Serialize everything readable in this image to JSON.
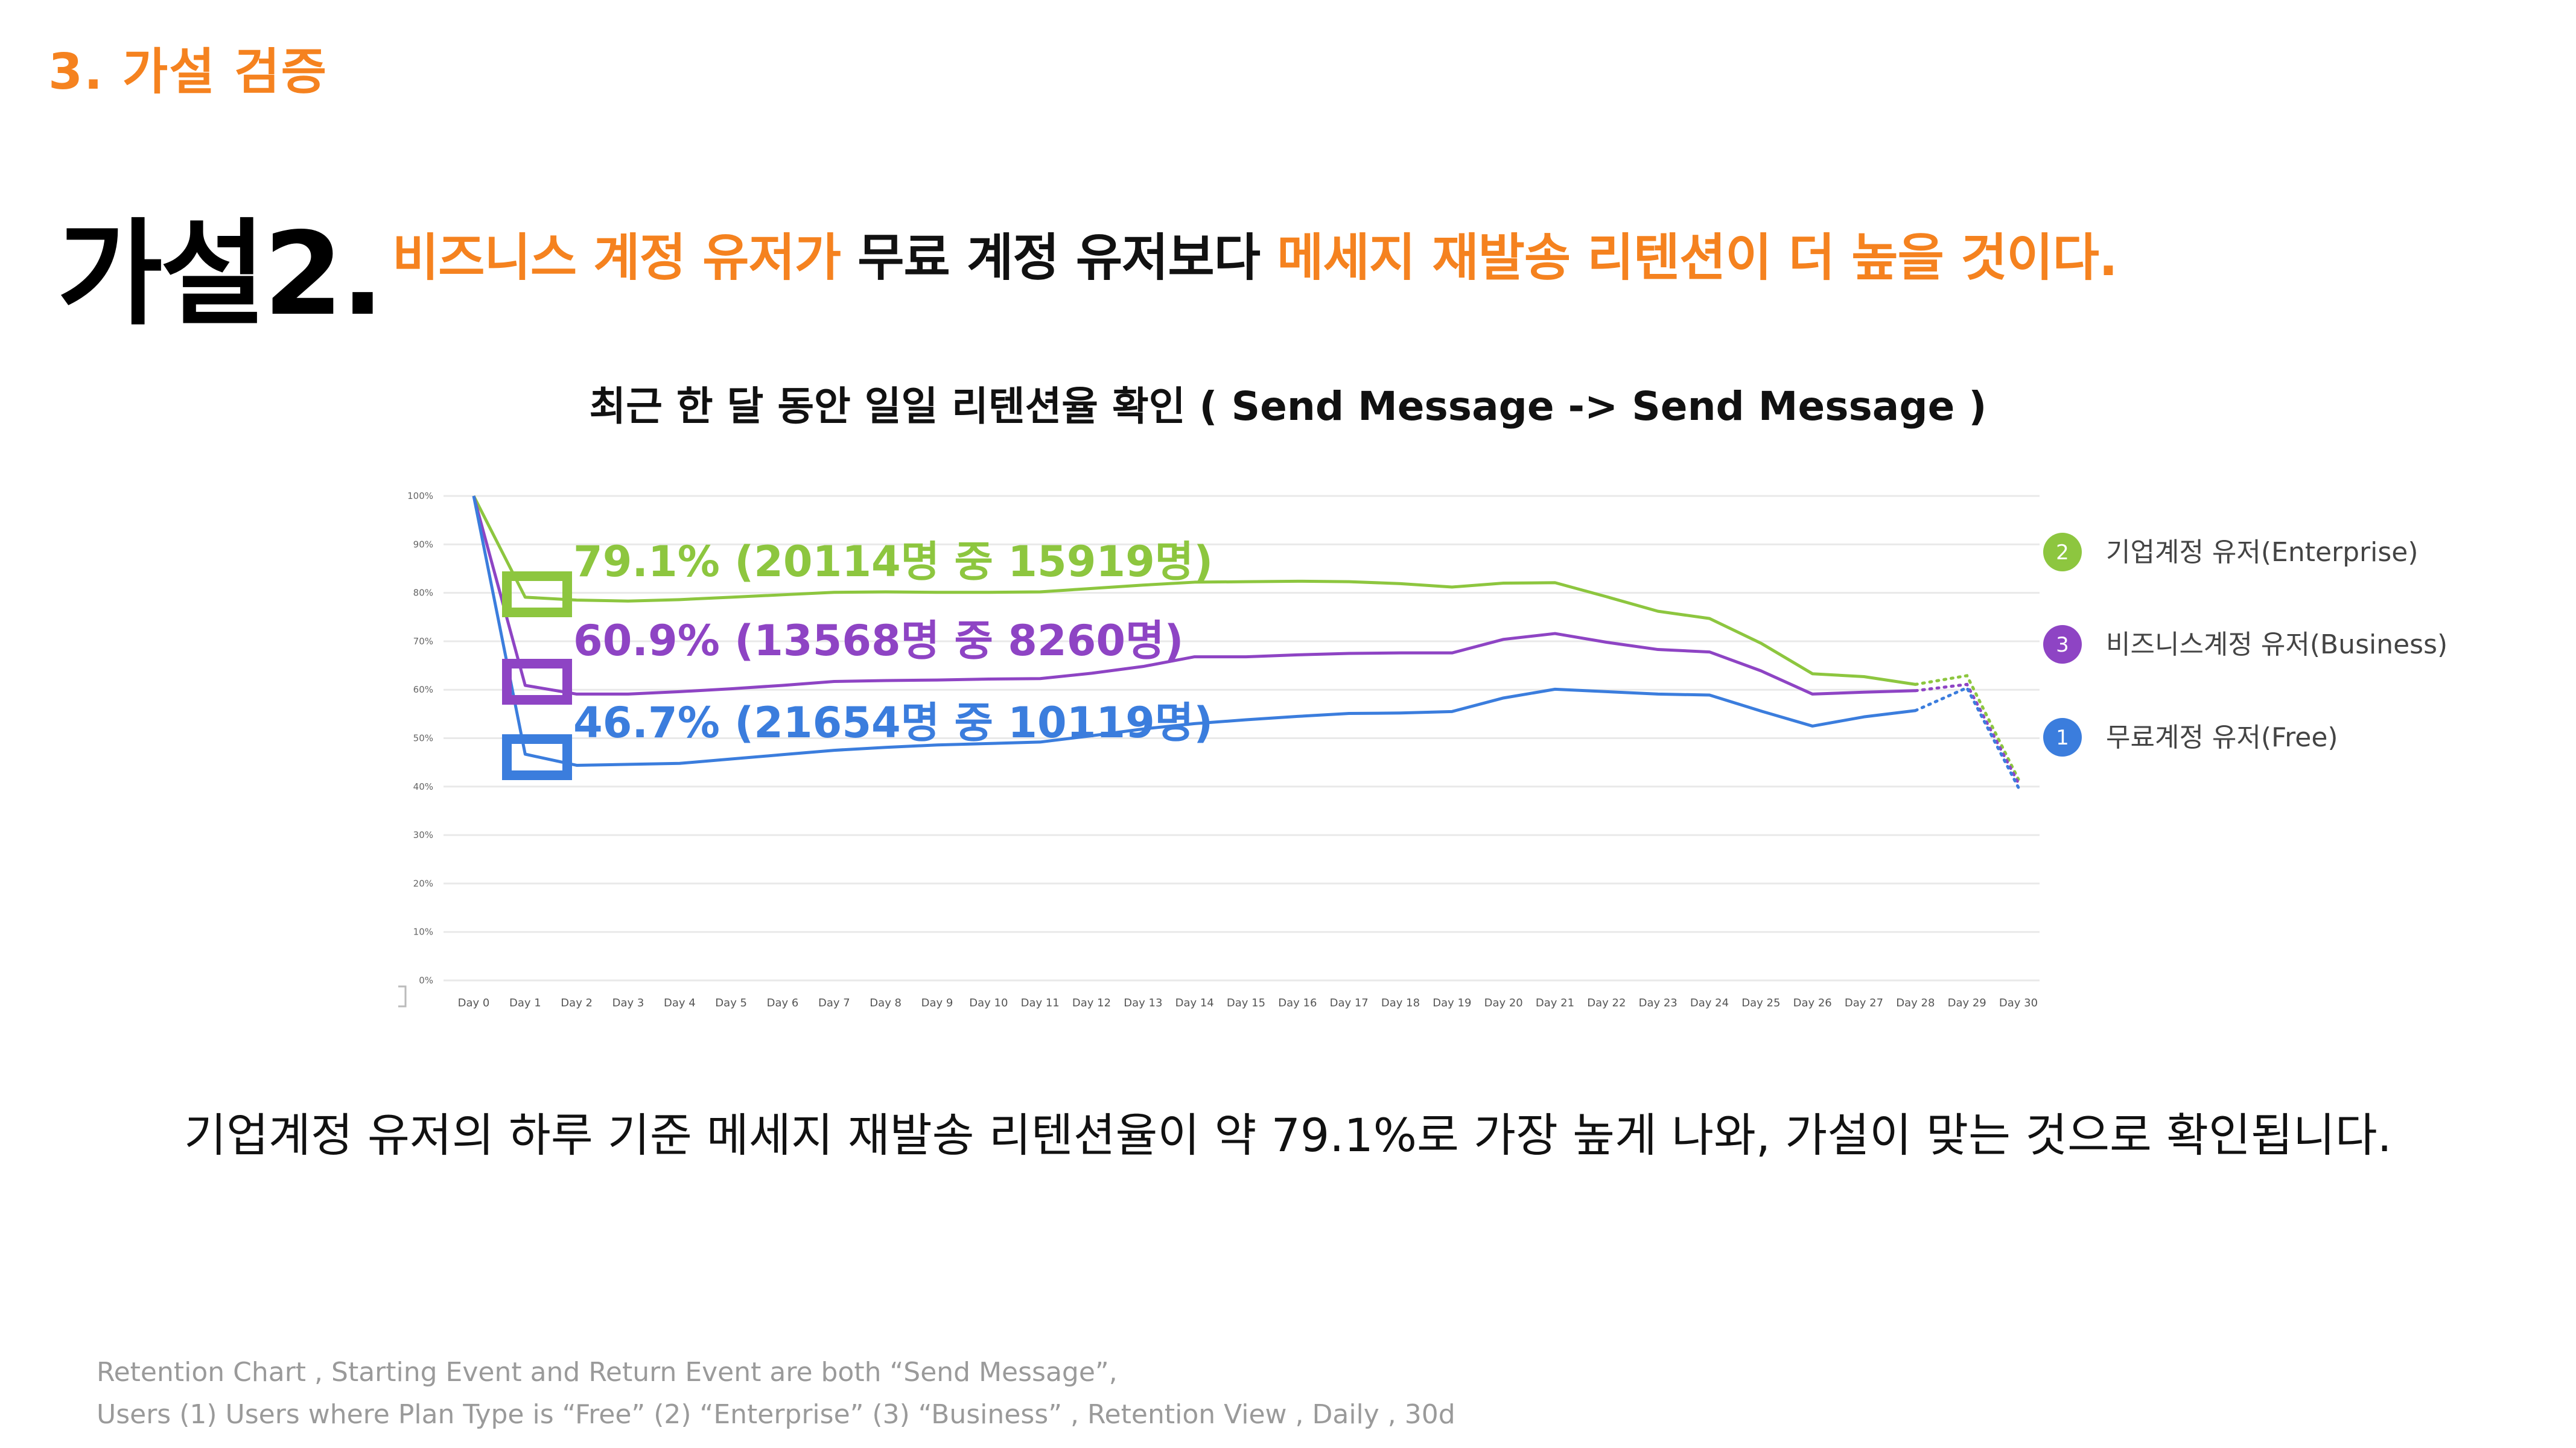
{
  "header": {
    "section_label": "3. 가설 검증",
    "hypothesis_title": "가설2.",
    "statement": {
      "part1": "비즈니스 계정 유저가",
      "part2": "무료 계정 유저보다",
      "part3": "메세지 재발송 리텐션이 더 높을 것이다."
    }
  },
  "chart_title": "최근 한 달 동안 일일 리텐션율 확인 ( Send Message -> Send Message )",
  "chart_data": {
    "type": "line",
    "x": [
      "Day 0",
      "Day 1",
      "Day 2",
      "Day 3",
      "Day 4",
      "Day 5",
      "Day 6",
      "Day 7",
      "Day 8",
      "Day 9",
      "Day 10",
      "Day 11",
      "Day 12",
      "Day 13",
      "Day 14",
      "Day 15",
      "Day 16",
      "Day 17",
      "Day 18",
      "Day 19",
      "Day 20",
      "Day 21",
      "Day 22",
      "Day 23",
      "Day 24",
      "Day 25",
      "Day 26",
      "Day 27",
      "Day 28",
      "Day 29",
      "Day 30"
    ],
    "yticks": [
      "100%",
      "90%",
      "80%",
      "70%",
      "60%",
      "50%",
      "40%",
      "30%",
      "20%",
      "10%",
      "0%"
    ],
    "ylim": [
      0,
      100
    ],
    "grid": true,
    "legend_position": "right",
    "series": [
      {
        "name": "기업계정 유저(Enterprise)",
        "badge": "2",
        "color": "#8dc63f",
        "values": [
          100,
          79.1,
          78.5,
          78.3,
          78.6,
          79.1,
          79.6,
          80.1,
          80.2,
          80.1,
          80.1,
          80.2,
          80.9,
          81.6,
          82.2,
          82.3,
          82.4,
          82.3,
          81.9,
          81.2,
          82,
          82.1,
          79.2,
          76.2,
          74.7,
          69.6,
          63.3,
          62.7,
          61.1,
          62.9,
          41.5
        ],
        "annotation": "79.1% (20114명 중 15919명)"
      },
      {
        "name": "비즈니스계정 유저(Business)",
        "badge": "3",
        "color": "#8e44c4",
        "values": [
          100,
          60.9,
          59.1,
          59.1,
          59.6,
          60.2,
          60.9,
          61.7,
          61.9,
          62,
          62.2,
          62.3,
          63.4,
          64.8,
          66.8,
          66.8,
          67.2,
          67.5,
          67.6,
          67.6,
          70.4,
          71.6,
          69.8,
          68.3,
          67.8,
          63.9,
          59.1,
          59.5,
          59.8,
          61.1,
          40.7
        ],
        "annotation": "60.9% (13568명 중 8260명)"
      },
      {
        "name": "무료계정 유저(Free)",
        "badge": "1",
        "color": "#3b7ddd",
        "values": [
          100,
          46.7,
          44.4,
          44.6,
          44.8,
          45.7,
          46.6,
          47.5,
          48.1,
          48.6,
          48.9,
          49.2,
          50.5,
          51.9,
          53,
          53.8,
          54.5,
          55.1,
          55.2,
          55.5,
          58.3,
          60.1,
          59.6,
          59.1,
          58.9,
          55.6,
          52.5,
          54.4,
          55.7,
          60.4,
          39.8
        ],
        "annotation": "46.7% (21654명 중 10119명)"
      }
    ]
  },
  "conclusion": "기업계정 유저의 하루 기준 메세지 재발송 리텐션율이 약 79.1%로 가장 높게 나와, 가설이 맞는 것으로 확인됩니다.",
  "footnote": {
    "line1": "Retention Chart , Starting Event and Return Event are both “Send Message”,",
    "line2": "Users (1) Users where Plan Type is “Free” (2) “Enterprise” (3) “Business” , Retention View , Daily , 30d"
  }
}
